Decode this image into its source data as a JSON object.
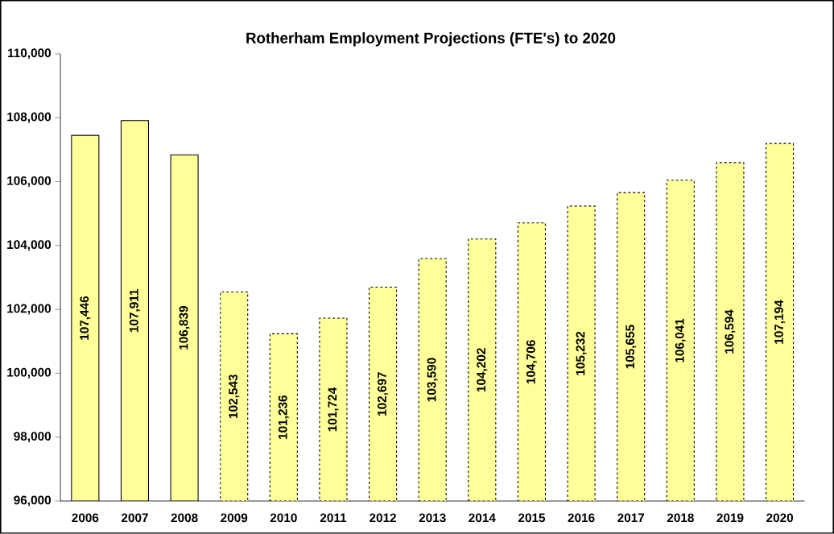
{
  "chart_data": {
    "type": "bar",
    "title": "Rotherham Employment Projections (FTE's) to 2020",
    "categories": [
      "2006",
      "2007",
      "2008",
      "2009",
      "2010",
      "2011",
      "2012",
      "2013",
      "2014",
      "2015",
      "2016",
      "2017",
      "2018",
      "2019",
      "2020"
    ],
    "series": [
      {
        "color": "#ffff99",
        "line_style": "solid",
        "values": [
          107446,
          107911,
          106839,
          null,
          null,
          null,
          null,
          null,
          null,
          null,
          null,
          null,
          null,
          null,
          null
        ],
        "value_labels": [
          "107,446",
          "107,911",
          "106,839",
          null,
          null,
          null,
          null,
          null,
          null,
          null,
          null,
          null,
          null,
          null,
          null
        ]
      },
      {
        "color": "#ffff99",
        "line_style": "dashed",
        "values": [
          null,
          null,
          null,
          102543,
          101236,
          101724,
          102697,
          103590,
          104202,
          104706,
          105232,
          105655,
          106041,
          106594,
          107194
        ],
        "value_labels": [
          null,
          null,
          null,
          "102,543",
          "101,236",
          "101,724",
          "102,697",
          "103,590",
          "104,202",
          "104,706",
          "105,232",
          "105,655",
          "106,041",
          "106,594",
          "107,194"
        ]
      }
    ],
    "ylim": [
      96000,
      110000
    ],
    "yticks": [
      {
        "value": 96000,
        "label": "96,000"
      },
      {
        "value": 98000,
        "label": "98,000"
      },
      {
        "value": 100000,
        "label": "100,000"
      },
      {
        "value": 102000,
        "label": "102,000"
      },
      {
        "value": 104000,
        "label": "104,000"
      },
      {
        "value": 106000,
        "label": "106,000"
      },
      {
        "value": 108000,
        "label": "108,000"
      },
      {
        "value": 110000,
        "label": "110,000"
      }
    ],
    "grid": false
  }
}
